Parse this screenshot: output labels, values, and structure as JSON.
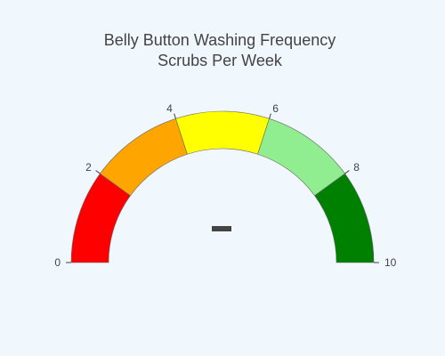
{
  "chart_data": {
    "type": "gauge",
    "title_lines": [
      "Belly Button Washing Frequency",
      "Scrubs Per Week"
    ],
    "range": [
      0,
      10
    ],
    "ticks": [
      0,
      2,
      4,
      6,
      8,
      10
    ],
    "tick_labels": [
      "0",
      "2",
      "4",
      "6",
      "8",
      "10"
    ],
    "steps": [
      {
        "range": [
          0,
          2
        ],
        "color": "#ff0000"
      },
      {
        "range": [
          2,
          4
        ],
        "color": "#ffa500"
      },
      {
        "range": [
          4,
          6
        ],
        "color": "#ffff00"
      },
      {
        "range": [
          6,
          8
        ],
        "color": "#90ee90"
      },
      {
        "range": [
          8,
          10
        ],
        "color": "#008000"
      }
    ],
    "value_display": "–"
  },
  "colors": {
    "background": "#f0f7fd",
    "text": "#444444",
    "step_border": "#666666"
  }
}
